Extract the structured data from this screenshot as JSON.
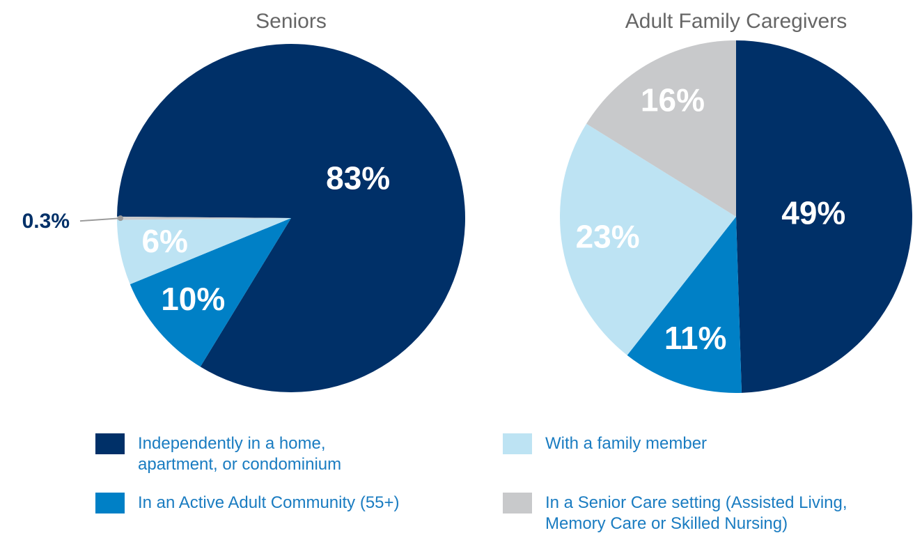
{
  "legend": {
    "categories": [
      "Independently in a home, apartment, or condominium",
      "In an Active Adult Community (55+)",
      "With a family member",
      "In a Senior Care setting (Assisted Living, Memory Care or Skilled Nursing)"
    ],
    "colors": [
      "#003068",
      "#0080c6",
      "#bde3f3",
      "#c8c9cb"
    ]
  },
  "chart_data": [
    {
      "type": "pie",
      "title": "Seniors",
      "values": [
        83,
        10,
        6,
        0.3
      ],
      "value_labels": [
        "83%",
        "10%",
        "6%",
        "0.3%"
      ]
    },
    {
      "type": "pie",
      "title": "Adult Family Caregivers",
      "values": [
        49,
        11,
        23,
        16
      ],
      "value_labels": [
        "49%",
        "11%",
        "23%",
        "16%"
      ]
    }
  ]
}
